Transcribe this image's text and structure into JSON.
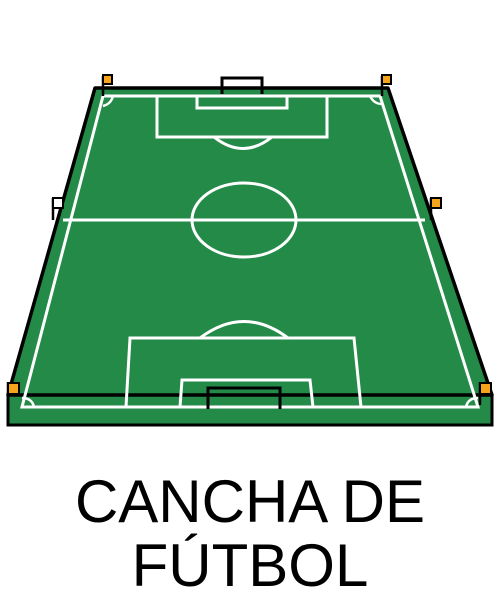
{
  "caption": {
    "line1": "CANCHA DE",
    "line2": "FÚTBOL"
  },
  "colors": {
    "grass": "#238b47",
    "lines": "#ffffff",
    "outline": "#000000",
    "corner_flag": "#f7a41d",
    "background": "#ffffff"
  },
  "icons": {
    "field": "soccer-field-icon",
    "goal": "goal-icon",
    "corner_flag": "corner-flag-icon",
    "side_flag": "side-flag-icon"
  }
}
